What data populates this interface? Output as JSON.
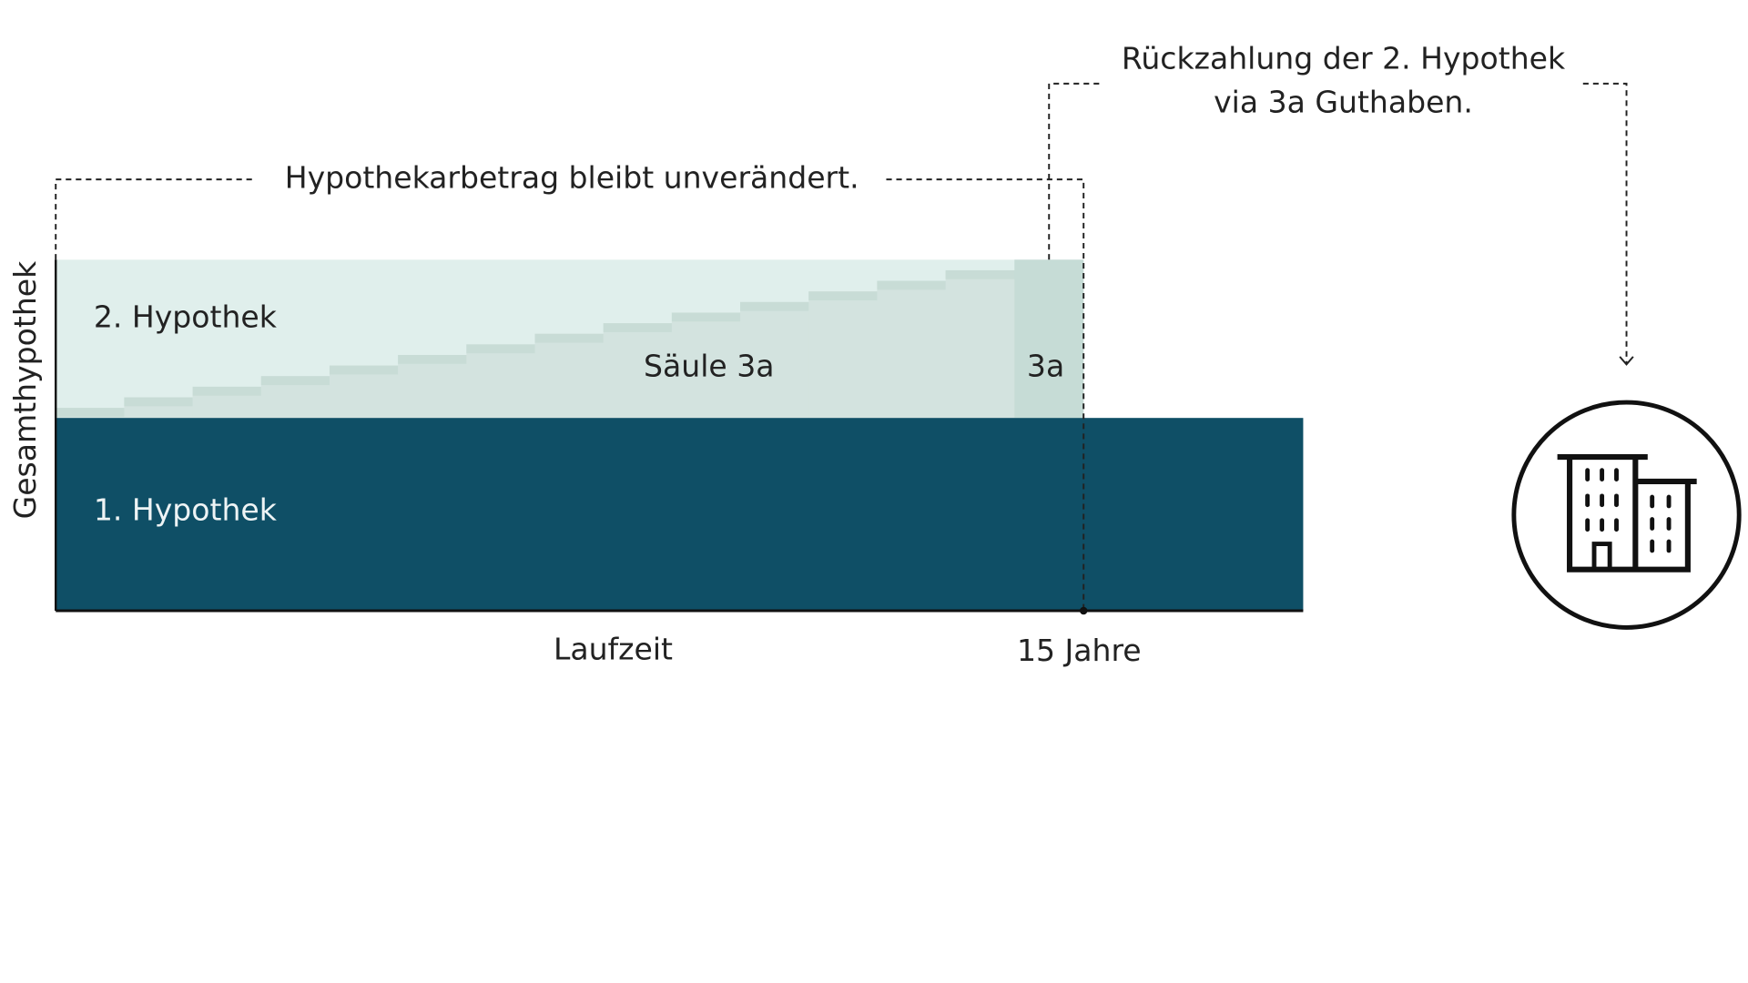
{
  "annotations": {
    "unchanged": "Hypothekarbetrag bleibt unverändert.",
    "repayment": [
      "Rückzahlung der 2. Hypothek",
      "via 3a Guthaben."
    ]
  },
  "areas": {
    "second_mortgage": "2. Hypothek",
    "pillar_3a": "Säule 3a",
    "pillar_3a_short": "3a",
    "first_mortgage": "1. Hypothek"
  },
  "axes": {
    "y_label": "Gesamthypothek",
    "x_label": "Laufzeit",
    "x_end": "15 Jahre"
  }
}
